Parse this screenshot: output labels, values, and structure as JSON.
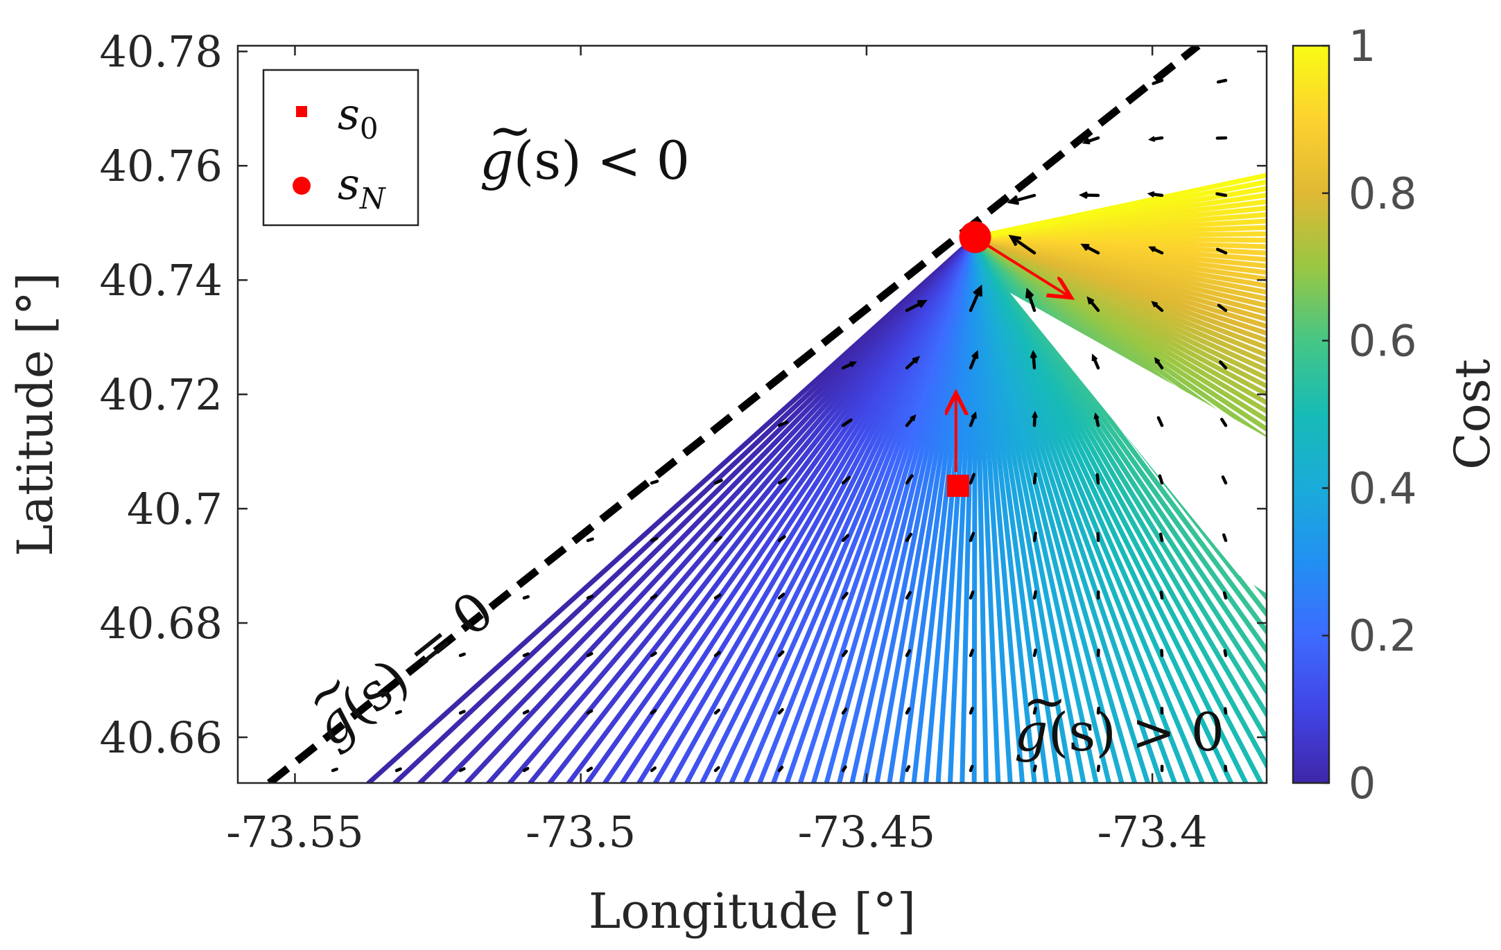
{
  "chart_data": {
    "type": "quiver-fan",
    "xlabel": "Longitude [°]",
    "ylabel": "Latitude [°]",
    "xlim": [
      -73.56,
      -73.38
    ],
    "ylim": [
      40.652,
      40.781
    ],
    "xticks": [
      -73.55,
      -73.5,
      -73.45,
      -73.4
    ],
    "xtick_labels": [
      "-73.55",
      "-73.5",
      "-73.45",
      "-73.4"
    ],
    "yticks": [
      40.66,
      40.68,
      40.7,
      40.72,
      40.74,
      40.76,
      40.78
    ],
    "ytick_labels": [
      "40.66",
      "40.68",
      "40.7",
      "40.72",
      "40.74",
      "40.76",
      "40.78"
    ],
    "boundary_line": {
      "from": [
        -73.5545,
        40.652
      ],
      "to": [
        -73.392,
        40.781
      ],
      "style": "dashed",
      "color": "#000000"
    },
    "s0": {
      "lon": -73.434,
      "lat": 40.704
    },
    "sN": {
      "lon": -73.431,
      "lat": 40.7475
    },
    "colorbar": {
      "label": "Cost",
      "range": [
        0,
        1
      ],
      "ticks": [
        0,
        0.2,
        0.4,
        0.6,
        0.8,
        1
      ],
      "tick_labels": [
        "0",
        "0.2",
        "0.4",
        "0.6",
        "0.8",
        "1"
      ],
      "colormap": "parula"
    },
    "legend": {
      "placement": "top-left",
      "entries": [
        {
          "label": "s",
          "sub": "0",
          "marker": "square",
          "color": "#ff0000"
        },
        {
          "label": "s",
          "sub": "N",
          "marker": "circle",
          "color": "#ff0000"
        }
      ]
    },
    "annotations": {
      "region_negative": {
        "g": "g",
        "arg": "(s)",
        "rel": "<",
        "rhs": "0"
      },
      "region_positive": {
        "g": "g",
        "arg": "(s)",
        "rel": ">",
        "rhs": "0"
      },
      "boundary": {
        "g": "g",
        "arg": "(s)",
        "rel": "=",
        "rhs": "0"
      }
    }
  }
}
